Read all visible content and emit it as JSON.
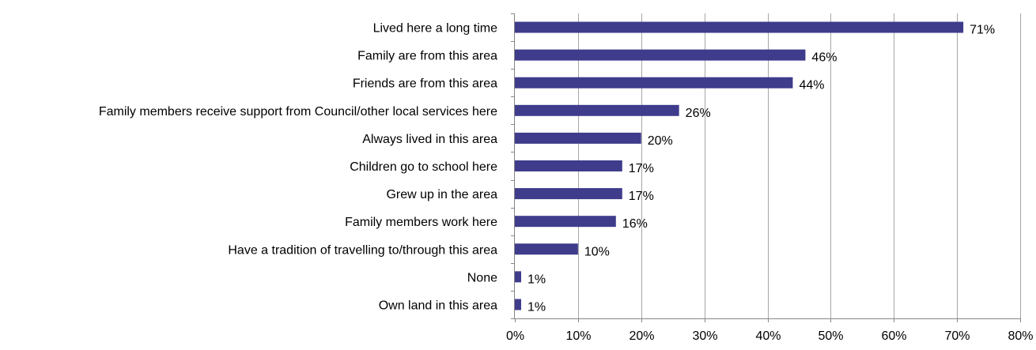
{
  "chart_data": {
    "type": "bar",
    "orientation": "horizontal",
    "title": "",
    "xlabel": "",
    "ylabel": "",
    "xlim": [
      0,
      80
    ],
    "x_ticks": [
      "0%",
      "10%",
      "20%",
      "30%",
      "40%",
      "50%",
      "60%",
      "70%",
      "80%"
    ],
    "grid": "vertical gridlines on",
    "legend": "none",
    "bar_color": "#3f3c8c",
    "categories": [
      "Lived here a long time",
      "Family are from this area",
      "Friends are from this area",
      "Family members receive support from Council/other local services here",
      "Always lived in this area",
      "Children go to school here",
      "Grew up in the area",
      "Family members work here",
      "Have a tradition of travelling to/through this area",
      "None",
      "Own land in this area"
    ],
    "values": [
      71,
      46,
      44,
      26,
      20,
      17,
      17,
      16,
      10,
      1,
      1
    ],
    "data_labels": [
      "71%",
      "46%",
      "44%",
      "26%",
      "20%",
      "17%",
      "17%",
      "16%",
      "10%",
      "1%",
      "1%"
    ]
  }
}
